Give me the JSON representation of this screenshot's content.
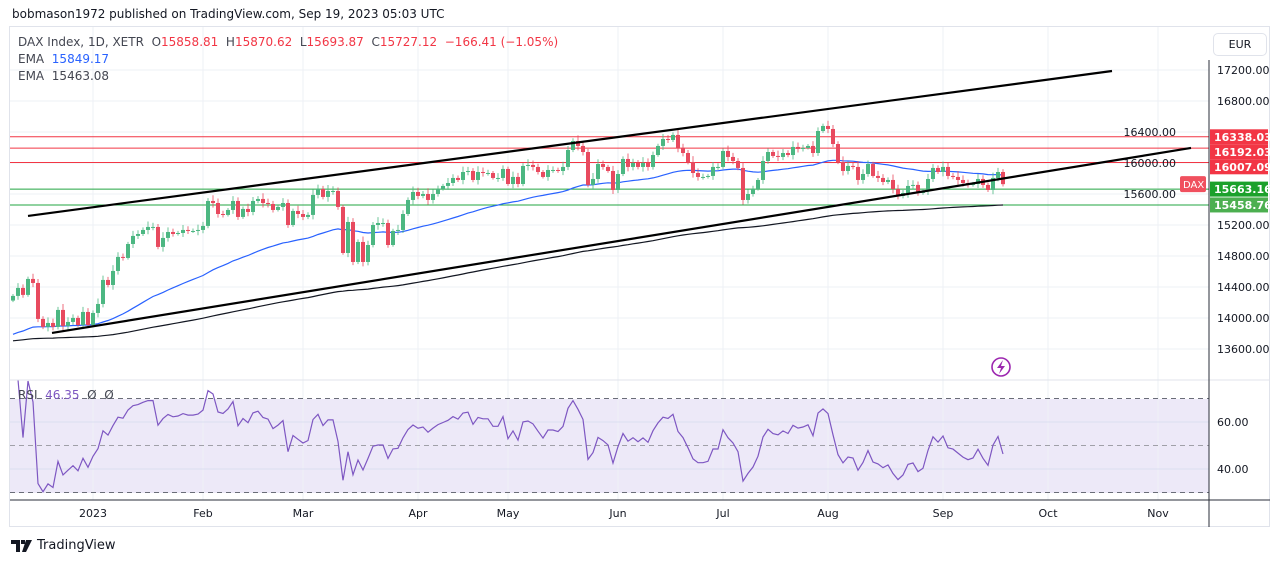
{
  "header": {
    "published": "bobmason1972 published on TradingView.com, Sep 19, 2023 05:03 UTC"
  },
  "legend": {
    "symbol": "DAX Index, 1D, XETR",
    "o_label": "O",
    "o": "15858.81",
    "h_label": "H",
    "h": "15870.62",
    "l_label": "L",
    "l": "15693.87",
    "c_label": "C",
    "c": "15727.12",
    "change": "−166.41 (−1.05%)",
    "ema1_label": "EMA",
    "ema1": "15849.17",
    "ema2_label": "EMA",
    "ema2": "15463.08"
  },
  "currency": "EUR",
  "rsi_legend": {
    "label": "RSI",
    "value": "46.35",
    "extra1": "Ø",
    "extra2": "Ø"
  },
  "brand": "TradingView",
  "colors": {
    "up": "#4cb782",
    "down": "#e84a5f",
    "ema_fast": "#2962ff",
    "ema_slow": "#131722",
    "rsi": "#7e57c2",
    "resistance": "#f23645",
    "support": "#22a541"
  },
  "chart_data": {
    "type": "candlestick",
    "symbol": "DAX",
    "last_price_label": "DAX",
    "closes": [
      14285,
      14388,
      14298,
      14504,
      14452,
      13988,
      13885,
      13936,
      13885,
      14104,
      13898,
      13949,
      14001,
      13910,
      14078,
      13910,
      14065,
      14181,
      14491,
      14426,
      14607,
      14788,
      14775,
      14955,
      15059,
      15084,
      15136,
      15175,
      15175,
      14917,
      15033,
      15110,
      15084,
      15097,
      15136,
      15123,
      15123,
      15136,
      15188,
      15510,
      15484,
      15342,
      15330,
      15394,
      15510,
      15304,
      15407,
      15368,
      15510,
      15536,
      15484,
      15471,
      15394,
      15433,
      15484,
      15200,
      15381,
      15342,
      15304,
      15330,
      15588,
      15665,
      15562,
      15639,
      15639,
      15433,
      14839,
      15239,
      14723,
      14981,
      14723,
      14942,
      15200,
      15226,
      15226,
      14942,
      15123,
      15136,
      15342,
      15523,
      15626,
      15575,
      15600,
      15523,
      15600,
      15665,
      15704,
      15742,
      15807,
      15781,
      15884,
      15897,
      15781,
      15884,
      15871,
      15871,
      15807,
      15807,
      15923,
      15729,
      15820,
      15729,
      15962,
      15975,
      15949,
      15884,
      15820,
      15910,
      15910,
      15897,
      15949,
      16168,
      16284,
      16220,
      16142,
      15717,
      15794,
      15987,
      15949,
      15897,
      15652,
      15858,
      16052,
      15949,
      16000,
      15949,
      16000,
      15949,
      16103,
      16220,
      16310,
      16297,
      16362,
      16194,
      16129,
      16013,
      15871,
      15820,
      15820,
      15833,
      15949,
      15949,
      16155,
      16078,
      16026,
      15936,
      15523,
      15600,
      15665,
      15781,
      16026,
      16142,
      16091,
      16078,
      16129,
      16103,
      16207,
      16181,
      16194,
      16220,
      16129,
      16413,
      16478,
      16439,
      16245,
      16013,
      15897,
      15962,
      15949,
      15781,
      15858,
      15987,
      15833,
      15807,
      15755,
      15781,
      15665,
      15575,
      15613,
      15704,
      15717,
      15613,
      15639,
      15794,
      15936,
      15884,
      15949,
      15833,
      15820,
      15781,
      15742,
      15717,
      15729,
      15794,
      15717,
      15652,
      15807,
      15884,
      15727
    ],
    "ema_fast_start": 13770,
    "ema_slow_start": 13700,
    "ema_fast_period": 50,
    "ema_slow_period": 200,
    "ylim": [
      13450,
      17450
    ],
    "yticks": [
      "17200.00",
      "16800.00",
      "16400.00",
      "16000.00",
      "15600.00",
      "15200.00",
      "14800.00",
      "14400.00",
      "14000.00",
      "13600.00"
    ],
    "xticks": [
      {
        "label": "2023",
        "index": 16
      },
      {
        "label": "Feb",
        "index": 38
      },
      {
        "label": "Mar",
        "index": 58
      },
      {
        "label": "Apr",
        "index": 81
      },
      {
        "label": "May",
        "index": 99
      },
      {
        "label": "Jun",
        "index": 121
      },
      {
        "label": "Jul",
        "index": 142
      },
      {
        "label": "Aug",
        "index": 163
      },
      {
        "label": "Sep",
        "index": 186
      },
      {
        "label": "Oct",
        "index": 207
      },
      {
        "label": "Nov",
        "index": 229
      }
    ],
    "levels": [
      {
        "label": "16338.03",
        "value": 16338.03,
        "kind": "resistance"
      },
      {
        "label": "16192.03",
        "value": 16192.03,
        "kind": "resistance"
      },
      {
        "label": "16007.09",
        "value": 16007.09,
        "kind": "resistance"
      },
      {
        "label": "15663.16",
        "value": 15663.16,
        "kind": "support"
      },
      {
        "label": "15458.76",
        "value": 15458.76,
        "kind": "support"
      }
    ],
    "trendlines": [
      {
        "name": "upper-channel",
        "from": {
          "index": 3,
          "price": 15317
        },
        "to": {
          "index": 219.8,
          "price": 17187
        }
      },
      {
        "name": "lower-channel",
        "from": {
          "index": 7.8,
          "price": 13807
        },
        "to": {
          "index": 235.6,
          "price": 16194
        }
      }
    ],
    "rsi": {
      "period": 14,
      "upper": 70,
      "middle": 50,
      "lower": 30,
      "yticks": [
        "60.00",
        "40.00"
      ],
      "last": 46.35
    }
  }
}
